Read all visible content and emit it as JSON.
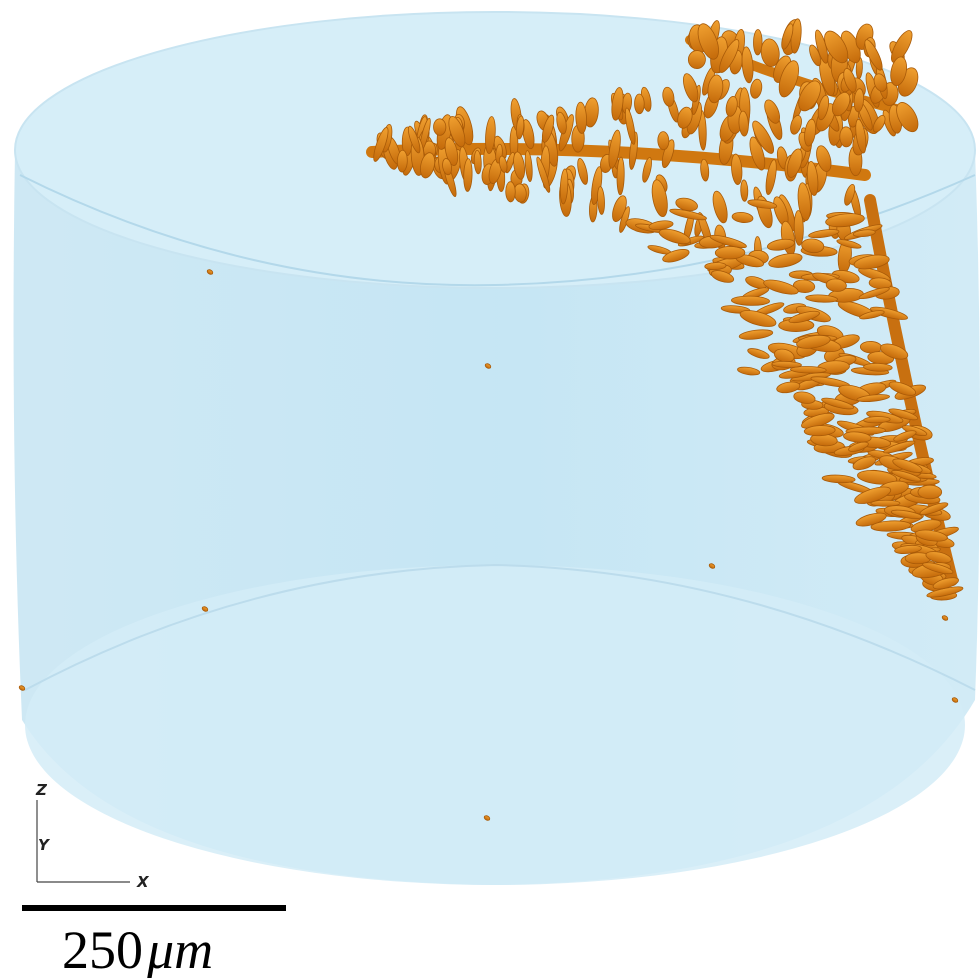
{
  "axes_triad": {
    "z_label": "Z",
    "y_label": "Y",
    "x_label": "X"
  },
  "scale_bar": {
    "number": "250",
    "unit": "μm"
  }
}
